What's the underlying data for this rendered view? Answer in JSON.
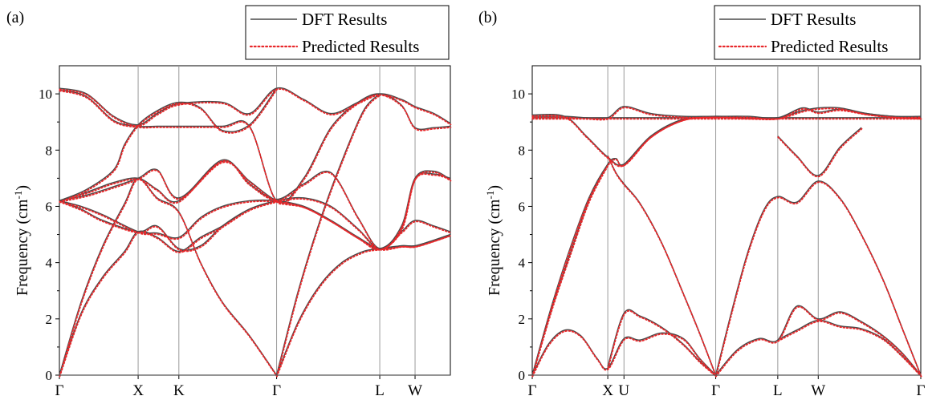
{
  "chart_data": [
    {
      "type": "line",
      "panel_label": "(a)",
      "ylabel": "Frequency (cm",
      "ylabel_sup": "-1",
      "ylabel_end": ")",
      "ylim": [
        0,
        11
      ],
      "yticks": [
        0,
        2,
        4,
        6,
        8,
        10
      ],
      "xlim": [
        0,
        7.2
      ],
      "high_symmetry_points": [
        {
          "label": "Γ",
          "x": 0
        },
        {
          "label": "X",
          "x": 1.45
        },
        {
          "label": "K",
          "x": 2.2
        },
        {
          "label": "Γ",
          "x": 4.0
        },
        {
          "label": "L",
          "x": 5.9
        },
        {
          "label": "W",
          "x": 6.55
        }
      ],
      "legend": {
        "placement": "top-right",
        "entries": [
          "DFT Results",
          "Predicted Results"
        ]
      },
      "series": [
        {
          "name": "DFT Results",
          "style": "solid",
          "color": "#4a4a4a"
        },
        {
          "name": "Predicted Results",
          "style": "dotted",
          "color": "#e8282b"
        }
      ],
      "bands": [
        {
          "x": [
            0,
            0.5,
            1.0,
            1.45,
            1.8,
            2.2,
            3.0,
            3.5,
            4.0,
            4.5,
            5.0,
            5.5,
            5.9,
            6.3,
            6.55,
            6.9,
            7.2
          ],
          "y": [
            10.2,
            10.0,
            9.2,
            8.9,
            9.3,
            9.65,
            9.7,
            9.3,
            10.2,
            9.8,
            9.3,
            9.7,
            10.0,
            9.8,
            9.55,
            9.3,
            8.95
          ]
        },
        {
          "x": [
            0,
            0.5,
            1.0,
            1.45,
            1.8,
            2.2,
            3.0,
            3.5,
            4.0,
            4.5,
            5.0,
            5.5,
            5.9,
            6.3,
            6.55,
            6.9,
            7.2
          ],
          "y": [
            10.15,
            9.9,
            9.05,
            8.85,
            8.85,
            8.85,
            8.85,
            8.85,
            6.2,
            7.0,
            8.8,
            9.7,
            10.0,
            9.6,
            8.8,
            8.8,
            8.85
          ]
        },
        {
          "x": [
            0,
            0.5,
            1.0,
            1.2,
            1.45,
            1.8,
            2.2,
            2.6,
            3.0,
            3.5,
            4.0
          ],
          "y": [
            6.2,
            6.6,
            7.3,
            8.2,
            8.9,
            9.4,
            9.7,
            9.5,
            8.7,
            8.9,
            10.2
          ]
        },
        {
          "x": [
            0,
            0.5,
            1.0,
            1.45,
            1.8,
            2.2,
            3.0,
            3.5,
            4.0,
            4.5,
            5.0,
            5.5,
            5.9,
            6.3,
            6.55,
            6.9,
            7.2
          ],
          "y": [
            6.2,
            6.5,
            6.85,
            7.0,
            6.6,
            6.2,
            7.65,
            6.8,
            6.25,
            6.8,
            7.2,
            5.6,
            4.5,
            5.3,
            7.0,
            7.15,
            7.0
          ]
        },
        {
          "x": [
            0,
            0.5,
            1.0,
            1.45,
            1.8,
            2.2,
            3.0,
            3.5,
            4.0,
            4.5,
            5.0,
            5.5,
            5.9,
            6.3,
            6.55,
            6.9,
            7.2
          ],
          "y": [
            6.2,
            6.4,
            6.7,
            7.0,
            7.3,
            6.3,
            7.6,
            6.9,
            6.2,
            6.0,
            5.5,
            4.9,
            4.5,
            5.2,
            7.0,
            7.25,
            6.95
          ]
        },
        {
          "x": [
            0,
            0.4,
            0.8,
            1.45,
            1.8,
            2.2,
            2.6,
            3.0,
            3.5,
            4.0,
            4.5,
            5.0,
            5.5,
            5.9,
            6.3,
            6.55,
            6.9,
            7.2
          ],
          "y": [
            6.2,
            6.0,
            5.7,
            5.1,
            5.05,
            4.9,
            5.6,
            6.0,
            6.2,
            6.2,
            6.0,
            5.5,
            4.9,
            4.5,
            4.6,
            4.6,
            4.8,
            5.0
          ]
        },
        {
          "x": [
            0,
            0.4,
            0.8,
            1.45,
            1.8,
            2.2,
            2.6,
            3.0,
            3.5,
            4.0,
            4.5,
            5.0,
            5.5,
            5.9,
            6.3,
            6.55,
            6.9,
            7.2
          ],
          "y": [
            6.2,
            5.9,
            5.5,
            5.1,
            5.3,
            4.5,
            4.6,
            5.3,
            5.9,
            6.2,
            6.3,
            6.0,
            5.2,
            4.5,
            5.1,
            5.5,
            5.3,
            5.1
          ]
        },
        {
          "x": [
            0,
            0.4,
            0.8,
            1.2,
            1.45,
            1.8,
            2.2,
            2.6,
            3.0,
            3.5,
            4.0
          ],
          "y": [
            0,
            2.2,
            3.5,
            4.4,
            5.1,
            4.9,
            4.4,
            4.9,
            5.3,
            5.9,
            6.2
          ]
        },
        {
          "x": [
            0,
            0.4,
            0.8,
            1.2,
            1.45,
            1.8,
            2.2,
            2.6,
            3.0,
            3.5,
            4.0
          ],
          "y": [
            0,
            2.6,
            4.6,
            6.1,
            7.0,
            6.3,
            5.8,
            4.0,
            2.6,
            1.4,
            0
          ]
        },
        {
          "x": [
            4.0,
            4.4,
            4.8,
            5.2,
            5.6,
            5.9,
            6.3,
            6.55,
            6.9,
            7.2
          ],
          "y": [
            0,
            1.9,
            3.2,
            4.0,
            4.4,
            4.5,
            4.6,
            4.6,
            4.8,
            5.0
          ]
        },
        {
          "x": [
            4.0,
            4.4,
            4.8,
            5.2,
            5.6,
            5.9
          ],
          "y": [
            0,
            3.0,
            5.5,
            7.6,
            9.4,
            10.0
          ]
        }
      ]
    },
    {
      "type": "line",
      "panel_label": "(b)",
      "ylabel": "Frequency (cm",
      "ylabel_sup": "-1",
      "ylabel_end": ")",
      "ylim": [
        0,
        11
      ],
      "yticks": [
        0,
        2,
        4,
        6,
        8,
        10
      ],
      "xlim": [
        0,
        7.2
      ],
      "high_symmetry_points": [
        {
          "label": "Γ",
          "x": 0
        },
        {
          "label": "X",
          "x": 1.4
        },
        {
          "label": "U",
          "x": 1.7
        },
        {
          "label": "Γ",
          "x": 3.4
        },
        {
          "label": "L",
          "x": 4.55
        },
        {
          "label": "W",
          "x": 5.3
        },
        {
          "label": "Γ",
          "x": 7.2
        }
      ],
      "legend": {
        "placement": "top-right",
        "entries": [
          "DFT Results",
          "Predicted Results"
        ]
      },
      "series": [
        {
          "name": "DFT Results",
          "style": "solid",
          "color": "#4a4a4a"
        },
        {
          "name": "Predicted Results",
          "style": "dotted",
          "color": "#e8282b"
        }
      ],
      "bands": [
        {
          "x": [
            0,
            0.6,
            1.4,
            1.7,
            2.2,
            2.8,
            3.4,
            4.0,
            4.55,
            5.0,
            5.3,
            5.7,
            6.2,
            6.7,
            7.2
          ],
          "y": [
            9.15,
            9.15,
            9.15,
            9.15,
            9.15,
            9.15,
            9.15,
            9.15,
            9.15,
            9.15,
            9.15,
            9.15,
            9.15,
            9.15,
            9.15
          ]
        },
        {
          "x": [
            0,
            0.6,
            1.0,
            1.4,
            1.7,
            2.2,
            2.8,
            3.4,
            4.0,
            4.55,
            5.0,
            5.3,
            5.7,
            6.2,
            6.7,
            7.2
          ],
          "y": [
            9.2,
            9.2,
            9.15,
            9.15,
            9.55,
            9.3,
            9.2,
            9.2,
            9.2,
            9.15,
            9.5,
            9.35,
            9.45,
            9.3,
            9.2,
            9.2
          ]
        },
        {
          "x": [
            0,
            0.6,
            1.0,
            1.4,
            1.7,
            2.2,
            2.8,
            3.4,
            4.0,
            4.55,
            5.0,
            5.3,
            5.7,
            6.2,
            6.7,
            7.2
          ],
          "y": [
            9.25,
            9.2,
            8.5,
            7.75,
            7.5,
            8.5,
            9.1,
            9.2,
            9.15,
            9.15,
            9.4,
            9.5,
            9.5,
            9.3,
            9.2,
            9.15
          ]
        },
        {
          "x": [
            0,
            0.35,
            0.7,
            1.05,
            1.4,
            1.55,
            1.7,
            2.2,
            2.8,
            3.4
          ],
          "y": [
            0,
            2.4,
            4.5,
            6.3,
            7.5,
            7.7,
            7.5,
            8.5,
            9.1,
            9.2
          ]
        },
        {
          "x": [
            0,
            0.35,
            0.7,
            1.05,
            1.4
          ],
          "y": [
            0,
            2.3,
            4.3,
            6.2,
            7.5
          ]
        },
        {
          "x": [
            1.4,
            1.55,
            1.7,
            2.0,
            2.4,
            2.8,
            3.1,
            3.4
          ],
          "y": [
            7.8,
            7.2,
            6.8,
            6.1,
            4.7,
            2.9,
            1.5,
            0
          ]
        },
        {
          "x": [
            3.4,
            3.7,
            4.0,
            4.3,
            4.55,
            4.9,
            5.3,
            5.7,
            6.1,
            6.5,
            6.85,
            7.2
          ],
          "y": [
            0,
            2.3,
            4.4,
            5.9,
            6.35,
            6.15,
            6.9,
            6.3,
            5.0,
            3.4,
            1.7,
            0
          ]
        },
        {
          "x": [
            4.55,
            4.9,
            5.3,
            5.7,
            6.1
          ],
          "y": [
            8.5,
            7.8,
            7.1,
            8.1,
            8.8
          ]
        },
        {
          "x": [
            0,
            0.3,
            0.6,
            0.9,
            1.2,
            1.4,
            1.7,
            2.0,
            2.4,
            2.8,
            3.1,
            3.4
          ],
          "y": [
            0,
            1.1,
            1.6,
            1.4,
            0.6,
            0.25,
            1.3,
            1.25,
            1.5,
            1.3,
            0.6,
            0
          ]
        },
        {
          "x": [
            1.4,
            1.7,
            2.0,
            2.4,
            2.8,
            3.1,
            3.4
          ],
          "y": [
            0.3,
            2.2,
            2.1,
            1.7,
            1.1,
            0.5,
            0
          ]
        },
        {
          "x": [
            3.4,
            3.8,
            4.2,
            4.55,
            4.9,
            5.3,
            5.7,
            6.1,
            6.5,
            6.85,
            7.2
          ],
          "y": [
            0,
            0.9,
            1.3,
            1.25,
            2.45,
            2.0,
            2.25,
            1.9,
            1.4,
            0.8,
            0
          ]
        },
        {
          "x": [
            4.55,
            4.9,
            5.3,
            5.7,
            6.1,
            6.5,
            6.85,
            7.2
          ],
          "y": [
            1.25,
            1.6,
            1.95,
            1.75,
            1.65,
            1.3,
            0.7,
            0
          ]
        }
      ]
    }
  ]
}
